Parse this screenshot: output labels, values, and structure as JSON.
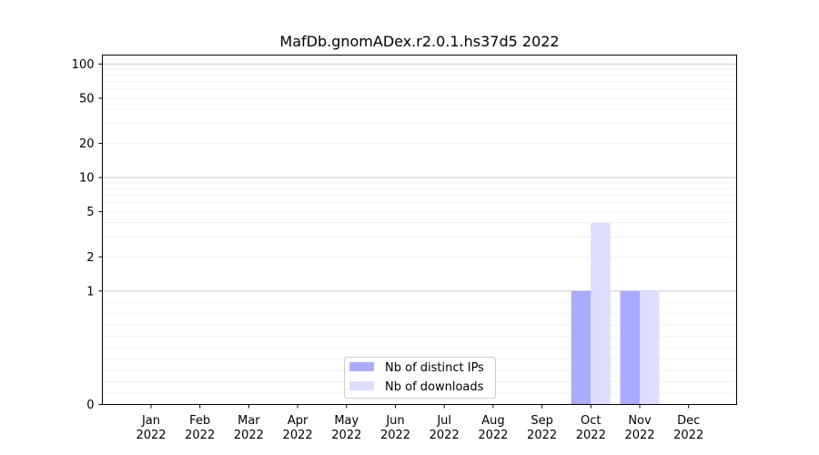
{
  "chart_data": {
    "type": "bar",
    "title": "MafDb.gnomADex.r2.0.1.hs37d5 2022",
    "xlabel": "",
    "ylabel": "",
    "y_scale": "symlog",
    "ylim": [
      0,
      120
    ],
    "y_ticks": [
      {
        "value": 0,
        "label": "0"
      },
      {
        "value": 1,
        "label": "1"
      },
      {
        "value": 2,
        "label": "2"
      },
      {
        "value": 5,
        "label": "5"
      },
      {
        "value": 10,
        "label": "10"
      },
      {
        "value": 20,
        "label": "20"
      },
      {
        "value": 50,
        "label": "50"
      },
      {
        "value": 100,
        "label": "100"
      }
    ],
    "categories": [
      {
        "month": "Jan",
        "year": "2022"
      },
      {
        "month": "Feb",
        "year": "2022"
      },
      {
        "month": "Mar",
        "year": "2022"
      },
      {
        "month": "Apr",
        "year": "2022"
      },
      {
        "month": "May",
        "year": "2022"
      },
      {
        "month": "Jun",
        "year": "2022"
      },
      {
        "month": "Jul",
        "year": "2022"
      },
      {
        "month": "Aug",
        "year": "2022"
      },
      {
        "month": "Sep",
        "year": "2022"
      },
      {
        "month": "Oct",
        "year": "2022"
      },
      {
        "month": "Nov",
        "year": "2022"
      },
      {
        "month": "Dec",
        "year": "2022"
      }
    ],
    "series": [
      {
        "name": "Nb of distinct IPs",
        "color": "#aaaaff",
        "values": [
          0,
          0,
          0,
          0,
          0,
          0,
          0,
          0,
          0,
          1,
          1,
          0
        ]
      },
      {
        "name": "Nb of downloads",
        "color": "#ddddff",
        "values": [
          0,
          0,
          0,
          0,
          0,
          0,
          0,
          0,
          0,
          4,
          1,
          0
        ]
      }
    ],
    "grid": true,
    "legend_position": "bottom-center"
  }
}
